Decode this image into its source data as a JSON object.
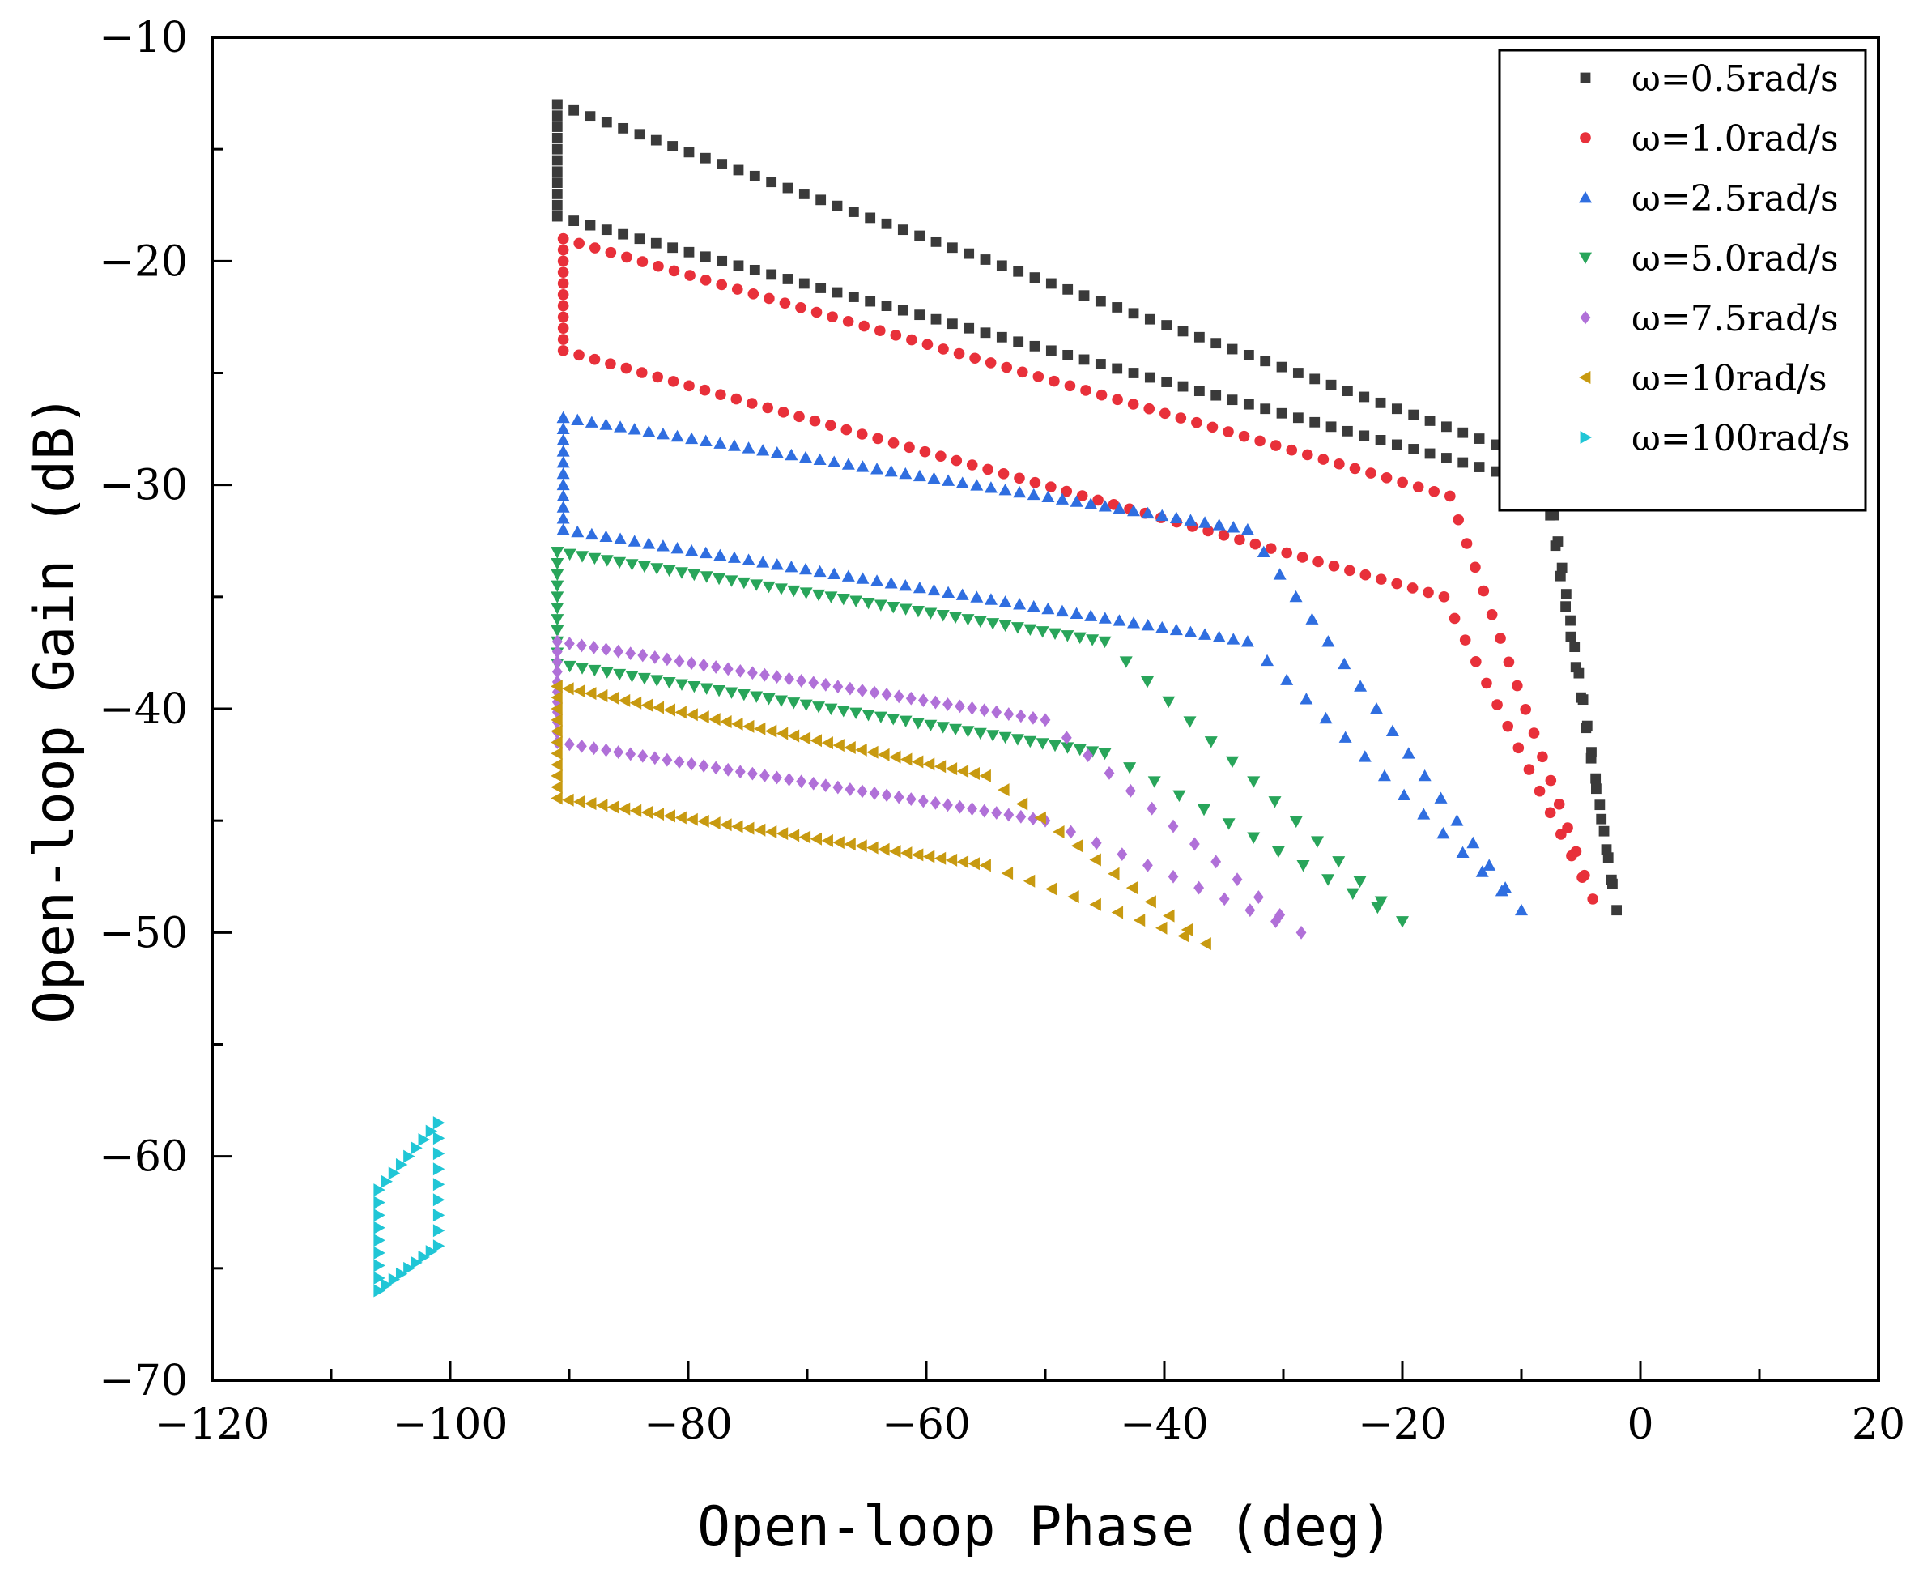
{
  "chart_data": {
    "type": "scatter",
    "title": "",
    "xlabel": "Open-loop Phase (deg)",
    "ylabel": "Open-loop Gain (dB)",
    "xlim": [
      -120,
      20
    ],
    "ylim": [
      -70,
      -10
    ],
    "xticks": [
      -120,
      -100,
      -80,
      -60,
      -40,
      -20,
      0,
      20
    ],
    "yticks": [
      -70,
      -60,
      -50,
      -40,
      -30,
      -20,
      -10
    ],
    "xtick_labels": [
      "−120",
      "−100",
      "−80",
      "−60",
      "−40",
      "−20",
      "0",
      "20"
    ],
    "ytick_labels": [
      "−70",
      "−60",
      "−50",
      "−40",
      "−30",
      "−20",
      "−10"
    ],
    "grid": false,
    "legend_position": "top-right",
    "series": [
      {
        "name": "ω=0.5rad/s",
        "marker": "square",
        "color": "#3a3a3a",
        "corners": [
          [
            -91,
            -13
          ],
          [
            -91,
            -18
          ],
          [
            -8,
            -30
          ],
          [
            -2,
            -49
          ]
        ],
        "top_end": [
          -8,
          -29
        ],
        "n": [
          60,
          10,
          30,
          14
        ]
      },
      {
        "name": "ω=1.0rad/s",
        "marker": "circle",
        "color": "#e8303a",
        "corners": [
          [
            -90.5,
            -19
          ],
          [
            -90.5,
            -24
          ],
          [
            -16.5,
            -35
          ],
          [
            -4,
            -48.5
          ]
        ],
        "top_end": [
          -16,
          -30.5
        ],
        "n": [
          56,
          10,
          28,
          14
        ]
      },
      {
        "name": "ω=2.5rad/s",
        "marker": "triangle-up",
        "color": "#2f6ee0",
        "corners": [
          [
            -90.5,
            -27
          ],
          [
            -90.5,
            -32
          ],
          [
            -33,
            -37
          ],
          [
            -10,
            -49
          ]
        ],
        "top_end": [
          -33,
          -32
        ],
        "n": [
          48,
          10,
          24,
          14
        ]
      },
      {
        "name": "ω=5.0rad/s",
        "marker": "triangle-down",
        "color": "#28a55a",
        "corners": [
          [
            -91,
            -33
          ],
          [
            -91,
            -38
          ],
          [
            -45,
            -42
          ],
          [
            -20,
            -49.5
          ]
        ],
        "top_end": [
          -45,
          -37
        ],
        "n": [
          44,
          10,
          22,
          12
        ]
      },
      {
        "name": "ω=7.5rad/s",
        "marker": "diamond",
        "color": "#b070d8",
        "corners": [
          [
            -91,
            -37
          ],
          [
            -91,
            -41.5
          ],
          [
            -50,
            -45
          ],
          [
            -28.5,
            -50
          ]
        ],
        "top_end": [
          -50,
          -40.5
        ],
        "n": [
          40,
          10,
          20,
          10
        ]
      },
      {
        "name": "ω=10rad/s",
        "marker": "triangle-left",
        "color": "#c89a10",
        "corners": [
          [
            -91,
            -39
          ],
          [
            -91,
            -44
          ],
          [
            -55,
            -47
          ],
          [
            -36.5,
            -50.5
          ]
        ],
        "top_end": [
          -55,
          -43
        ],
        "n": [
          38,
          10,
          18,
          10
        ]
      },
      {
        "name": "ω=100rad/s",
        "marker": "triangle-right",
        "color": "#20c6d6",
        "corners": [
          [
            -106,
            -61.5
          ],
          [
            -106,
            -66
          ],
          [
            -101,
            -64
          ],
          [
            -101,
            -58.5
          ]
        ],
        "top_end": null,
        "n": [
          8,
          8,
          8,
          8
        ]
      }
    ]
  }
}
